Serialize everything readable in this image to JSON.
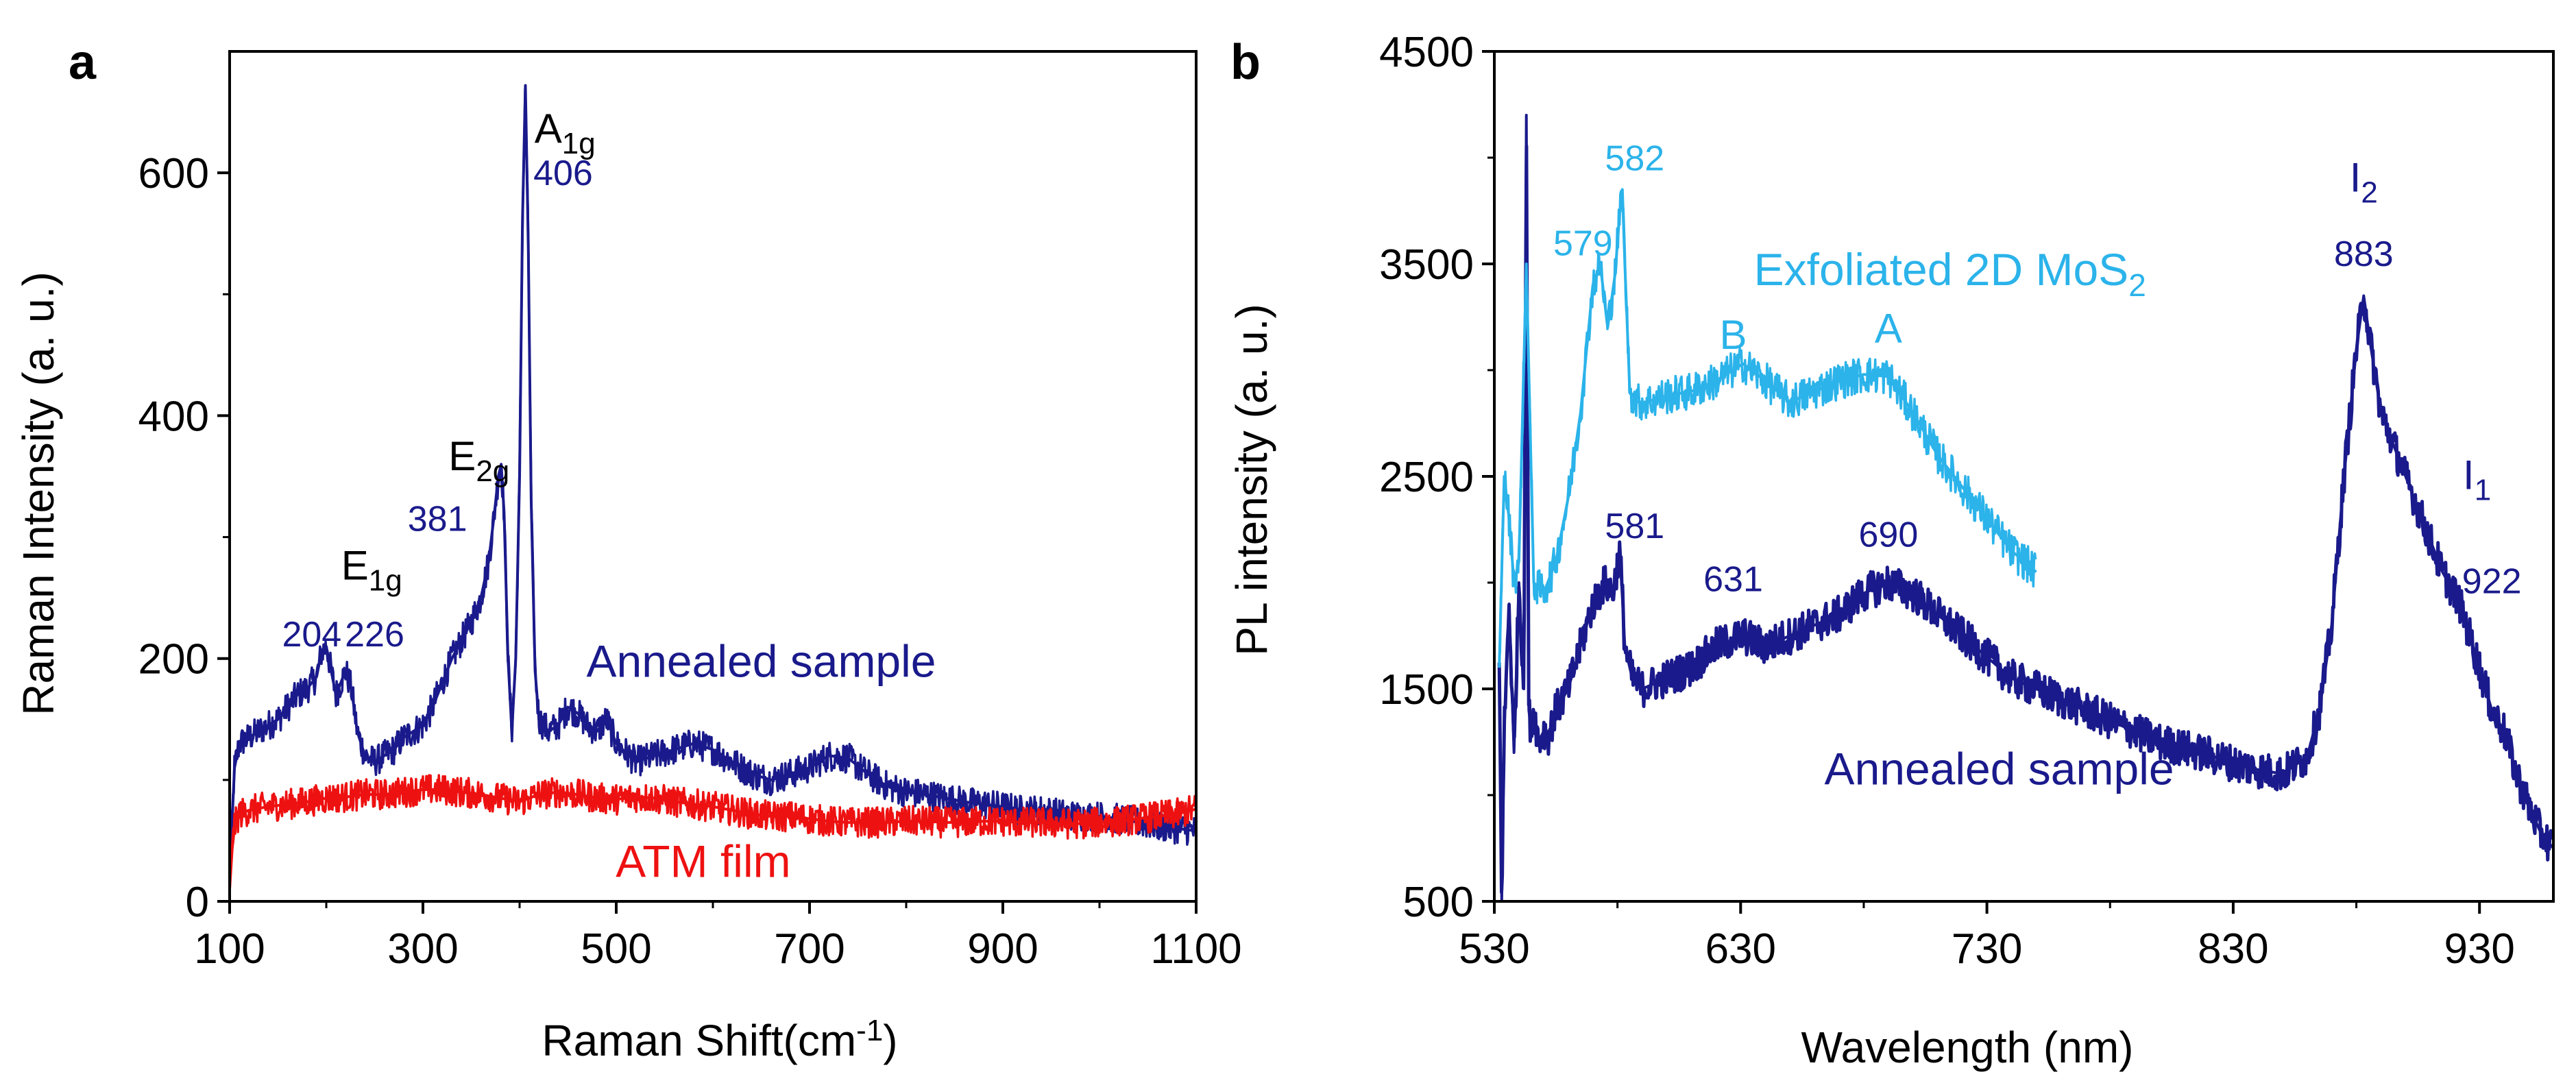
{
  "chart_data": [
    {
      "panel": "a",
      "type": "line",
      "title": "",
      "xlabel": "Raman Shift(cm-1)",
      "xlabel_main": "Raman Shift(cm",
      "xlabel_sup": "-1",
      "xlabel_end": ")",
      "ylabel": "Raman Intensity (a. u.)",
      "xlim": [
        100,
        1100
      ],
      "ylim": [
        0,
        700
      ],
      "xticks": [
        100,
        300,
        500,
        700,
        900,
        1100
      ],
      "yticks": [
        0,
        200,
        400,
        600
      ],
      "series": [
        {
          "name": "Annealed sample",
          "color": "#1a1a8c",
          "x": [
            100,
            105,
            110,
            120,
            130,
            140,
            150,
            160,
            170,
            180,
            190,
            195,
            200,
            205,
            210,
            215,
            220,
            226,
            232,
            240,
            250,
            260,
            270,
            280,
            290,
            300,
            310,
            320,
            330,
            340,
            350,
            360,
            368,
            374,
            378,
            381,
            384,
            388,
            392,
            396,
            400,
            403,
            406,
            409,
            412,
            416,
            420,
            430,
            440,
            450,
            460,
            470,
            480,
            490,
            500,
            520,
            540,
            560,
            580,
            600,
            620,
            640,
            660,
            680,
            700,
            720,
            740,
            760,
            780,
            800,
            820,
            840,
            860,
            880,
            900,
            920,
            940,
            960,
            980,
            1000,
            1020,
            1040,
            1060,
            1080,
            1100
          ],
          "y": [
            20,
            110,
            130,
            135,
            140,
            145,
            150,
            160,
            170,
            175,
            185,
            205,
            210,
            190,
            170,
            180,
            190,
            175,
            140,
            120,
            115,
            120,
            125,
            135,
            140,
            145,
            160,
            180,
            200,
            215,
            230,
            250,
            280,
            320,
            350,
            360,
            320,
            200,
            140,
            200,
            350,
            560,
            672,
            540,
            330,
            190,
            150,
            140,
            145,
            160,
            155,
            145,
            140,
            150,
            130,
            115,
            120,
            125,
            130,
            125,
            115,
            105,
            100,
            105,
            110,
            120,
            118,
            105,
            95,
            90,
            88,
            85,
            82,
            80,
            78,
            75,
            75,
            72,
            70,
            70,
            68,
            65,
            62,
            60,
            58
          ]
        },
        {
          "name": "ATM film",
          "color": "#ee1111",
          "x": [
            100,
            104,
            110,
            120,
            140,
            160,
            180,
            200,
            220,
            240,
            260,
            280,
            300,
            320,
            340,
            360,
            380,
            400,
            420,
            440,
            460,
            480,
            500,
            520,
            540,
            560,
            580,
            600,
            620,
            640,
            660,
            680,
            700,
            720,
            740,
            760,
            780,
            800,
            820,
            840,
            860,
            880,
            900,
            920,
            940,
            960,
            980,
            1000,
            1020,
            1040,
            1060,
            1080,
            1100
          ],
          "y": [
            10,
            60,
            72,
            75,
            78,
            80,
            82,
            85,
            86,
            88,
            88,
            90,
            92,
            92,
            90,
            88,
            85,
            82,
            88,
            90,
            88,
            85,
            84,
            86,
            85,
            82,
            80,
            78,
            75,
            72,
            70,
            70,
            68,
            66,
            65,
            65,
            65,
            66,
            66,
            65,
            65,
            66,
            66,
            65,
            65,
            64,
            64,
            65,
            66,
            68,
            70,
            72,
            76
          ]
        }
      ],
      "annotations": [
        {
          "text": "204",
          "x": 185,
          "y": 210,
          "color": "#1a1a8c"
        },
        {
          "text": "226",
          "x": 250,
          "y": 210,
          "color": "#1a1a8c"
        },
        {
          "text": "381",
          "x": 315,
          "y": 305,
          "color": "#1a1a8c"
        },
        {
          "text": "406",
          "x": 445,
          "y": 590,
          "color": "#1a1a8c"
        }
      ],
      "peak_labels": [
        {
          "base": "E",
          "sub": "1g",
          "x": 247,
          "y": 265
        },
        {
          "base": "E",
          "sub": "2g",
          "x": 358,
          "y": 355
        },
        {
          "base": "A",
          "sub": "1g",
          "x": 447,
          "y": 625
        }
      ],
      "series_labels": [
        {
          "text": "Annealed sample",
          "x": 650,
          "y": 185,
          "color": "#1a1a8c"
        },
        {
          "text": "ATM film",
          "x": 590,
          "y": 20,
          "color": "#ee1111"
        }
      ]
    },
    {
      "panel": "b",
      "type": "line",
      "title": "",
      "xlabel": "Wavelength (nm)",
      "ylabel": "PL intensity (a. u.)",
      "xlim": [
        530,
        960
      ],
      "ylim": [
        500,
        4500
      ],
      "xticks": [
        530,
        630,
        730,
        830,
        930
      ],
      "yticks": [
        500,
        1500,
        2500,
        3500,
        4500
      ],
      "series": [
        {
          "name": "Annealed sample",
          "color": "#1a1a8c",
          "x": [
            532,
            533,
            534,
            536,
            538,
            540,
            542,
            543,
            544,
            545,
            546,
            548,
            550,
            552,
            555,
            560,
            565,
            570,
            575,
            578,
            581,
            583,
            586,
            590,
            600,
            610,
            620,
            631,
            640,
            650,
            660,
            670,
            680,
            690,
            700,
            710,
            720,
            730,
            740,
            750,
            760,
            770,
            780,
            790,
            800,
            810,
            820,
            830,
            840,
            850,
            860,
            865,
            870,
            875,
            880,
            883,
            886,
            890,
            895,
            900,
            905,
            910,
            915,
            922,
            930,
            935,
            940,
            945,
            950,
            955,
            960
          ],
          "y": [
            1600,
            500,
            1300,
            1900,
            1200,
            2000,
            1500,
            4200,
            1400,
            1300,
            1400,
            1250,
            1300,
            1280,
            1400,
            1500,
            1700,
            1900,
            2000,
            1950,
            2150,
            1700,
            1550,
            1500,
            1550,
            1600,
            1700,
            1750,
            1700,
            1750,
            1800,
            1850,
            1950,
            2000,
            1950,
            1850,
            1750,
            1650,
            1550,
            1500,
            1450,
            1400,
            1350,
            1300,
            1250,
            1220,
            1190,
            1150,
            1120,
            1100,
            1180,
            1400,
            1800,
            2500,
            3100,
            3350,
            3100,
            2800,
            2650,
            2500,
            2350,
            2200,
            2050,
            1900,
            1600,
            1400,
            1300,
            1100,
            950,
            820,
            750
          ]
        },
        {
          "name": "Exfoliated 2D MoS2",
          "color": "#2bb3ea",
          "x": [
            532,
            534,
            536,
            538,
            540,
            543,
            546,
            550,
            555,
            560,
            565,
            570,
            573,
            576,
            579,
            581,
            582,
            583,
            585,
            588,
            592,
            600,
            610,
            620,
            631,
            640,
            650,
            660,
            670,
            680,
            690,
            700,
            710,
            720,
            730,
            740,
            750
          ],
          "y": [
            1600,
            2500,
            2300,
            2000,
            2100,
            3500,
            2000,
            1950,
            2100,
            2400,
            2800,
            3400,
            3500,
            3200,
            3450,
            3750,
            3850,
            3500,
            2900,
            2850,
            2850,
            2880,
            2900,
            2950,
            3030,
            2950,
            2850,
            2900,
            2950,
            2980,
            2970,
            2800,
            2600,
            2450,
            2300,
            2150,
            2050
          ]
        }
      ],
      "annotations": [
        {
          "text": "579",
          "x": 566,
          "y": 3540,
          "color": "#2bb3ea"
        },
        {
          "text": "582",
          "x": 587,
          "y": 3940,
          "color": "#2bb3ea"
        },
        {
          "text": "B",
          "x": 627,
          "y": 3100,
          "color": "#2bb3ea"
        },
        {
          "text": "A",
          "x": 690,
          "y": 3130,
          "color": "#2bb3ea"
        },
        {
          "text": "581",
          "x": 587,
          "y": 2210,
          "color": "#1a1a8c"
        },
        {
          "text": "631",
          "x": 627,
          "y": 1960,
          "color": "#1a1a8c"
        },
        {
          "text": "690",
          "x": 690,
          "y": 2170,
          "color": "#1a1a8c"
        },
        {
          "text": "883",
          "x": 883,
          "y": 3490,
          "color": "#1a1a8c"
        },
        {
          "text": "922",
          "x": 935,
          "y": 1950,
          "color": "#1a1a8c"
        }
      ],
      "peak_labels": [
        {
          "base": "I",
          "sub": "2",
          "x": 883,
          "y": 3840,
          "color": "#1a1a8c"
        },
        {
          "base": "I",
          "sub": "1",
          "x": 929,
          "y": 2440,
          "color": "#1a1a8c"
        }
      ],
      "series_labels": [
        {
          "text": "Exfoliated 2D MoS",
          "sub": "2",
          "x": 715,
          "y": 3400,
          "color": "#2bb3ea"
        },
        {
          "text": "Annealed sample",
          "x": 735,
          "y": 1050,
          "color": "#1a1a8c"
        }
      ]
    }
  ],
  "panel_letters": {
    "a": "a",
    "b": "b"
  }
}
